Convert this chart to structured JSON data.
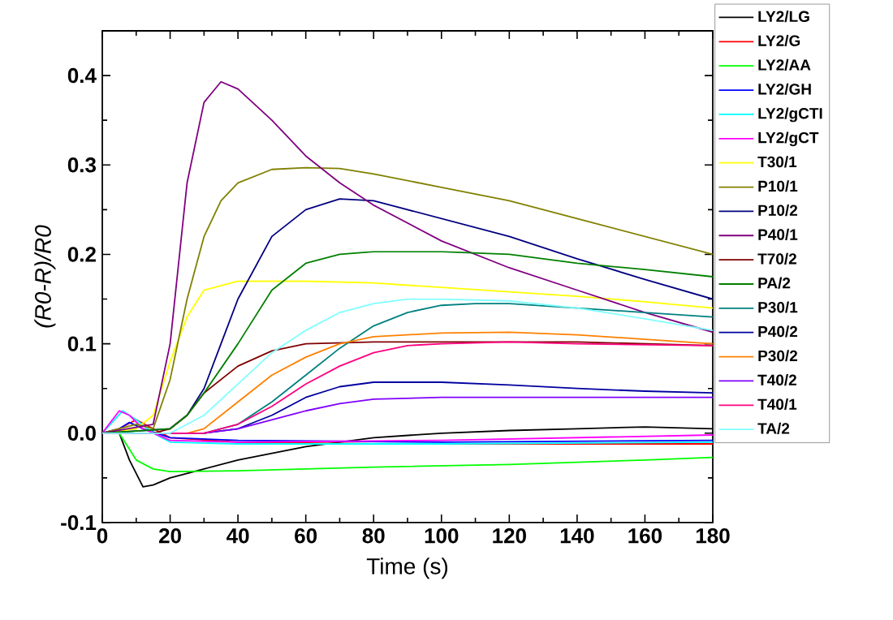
{
  "chart_data": {
    "type": "line",
    "xlabel": "Time (s)",
    "ylabel": "*(R0-R)/R0*",
    "xlim": [
      0,
      180
    ],
    "ylim": [
      -0.1,
      0.45
    ],
    "xticks": [
      0,
      20,
      40,
      60,
      80,
      100,
      120,
      140,
      160,
      180
    ],
    "yticks": [
      {
        "value": -0.1,
        "label": "-0.1"
      },
      {
        "value": 0,
        "label": "0.0"
      },
      {
        "value": 0.1,
        "label": "0.1"
      },
      {
        "value": 0.2,
        "label": "0.2"
      },
      {
        "value": 0.3,
        "label": "0.3"
      },
      {
        "value": 0.4,
        "label": "0.4"
      }
    ],
    "grid": false,
    "legend": "right",
    "marker": "none",
    "line_style": "solid",
    "series": [
      {
        "name": "LY2/LG",
        "color": "#000000",
        "x": [
          0,
          5,
          8,
          12,
          15,
          20,
          30,
          40,
          60,
          80,
          100,
          120,
          140,
          160,
          180
        ],
        "values": [
          0,
          0,
          -0.03,
          -0.06,
          -0.058,
          -0.05,
          -0.04,
          -0.03,
          -0.015,
          -0.005,
          0,
          0.003,
          0.005,
          0.007,
          0.005
        ]
      },
      {
        "name": "LY2/G",
        "color": "#ff0000",
        "x": [
          0,
          5,
          10,
          15,
          20,
          40,
          80,
          120,
          180
        ],
        "values": [
          0,
          0.005,
          0.015,
          0.005,
          -0.005,
          -0.01,
          -0.012,
          -0.012,
          -0.012
        ]
      },
      {
        "name": "LY2/AA",
        "color": "#00ff00",
        "x": [
          0,
          5,
          10,
          15,
          20,
          40,
          80,
          120,
          160,
          180
        ],
        "values": [
          0,
          0,
          -0.03,
          -0.04,
          -0.043,
          -0.042,
          -0.038,
          -0.035,
          -0.03,
          -0.027
        ]
      },
      {
        "name": "LY2/GH",
        "color": "#0000ff",
        "x": [
          0,
          5,
          8,
          12,
          20,
          40,
          100,
          180
        ],
        "values": [
          0,
          0.005,
          0.012,
          0.005,
          -0.005,
          -0.008,
          -0.01,
          -0.008
        ]
      },
      {
        "name": "LY2/gCTI",
        "color": "#00ffff",
        "x": [
          0,
          6,
          10,
          15,
          20,
          40,
          100,
          180
        ],
        "values": [
          0,
          0.025,
          0.015,
          0,
          -0.01,
          -0.012,
          -0.012,
          -0.01
        ]
      },
      {
        "name": "LY2/gCT",
        "color": "#ff00ff",
        "x": [
          0,
          5,
          8,
          12,
          20,
          40,
          100,
          180
        ],
        "values": [
          0,
          0.025,
          0.02,
          0.005,
          -0.008,
          -0.01,
          -0.008,
          -0.002
        ]
      },
      {
        "name": "T30/1",
        "color": "#ffff00",
        "x": [
          0,
          10,
          15,
          20,
          25,
          30,
          40,
          60,
          80,
          100,
          120,
          140,
          160,
          180
        ],
        "values": [
          0,
          0.005,
          0.02,
          0.08,
          0.13,
          0.16,
          0.17,
          0.17,
          0.168,
          0.163,
          0.158,
          0.153,
          0.147,
          0.14
        ]
      },
      {
        "name": "P10/1",
        "color": "#808000",
        "x": [
          0,
          10,
          15,
          20,
          25,
          30,
          35,
          40,
          50,
          60,
          70,
          80,
          100,
          120,
          140,
          160,
          180
        ],
        "values": [
          0,
          0.01,
          0.005,
          0.06,
          0.15,
          0.22,
          0.26,
          0.28,
          0.295,
          0.297,
          0.296,
          0.29,
          0.275,
          0.26,
          0.24,
          0.22,
          0.2
        ]
      },
      {
        "name": "P10/2",
        "color": "#000080",
        "x": [
          0,
          20,
          25,
          30,
          35,
          40,
          50,
          60,
          70,
          80,
          100,
          120,
          140,
          160,
          180
        ],
        "values": [
          0,
          0.005,
          0.02,
          0.05,
          0.1,
          0.15,
          0.22,
          0.25,
          0.262,
          0.26,
          0.24,
          0.22,
          0.195,
          0.172,
          0.15
        ]
      },
      {
        "name": "P40/1",
        "color": "#800080",
        "x": [
          0,
          15,
          20,
          25,
          30,
          35,
          40,
          50,
          60,
          70,
          80,
          100,
          120,
          140,
          160,
          180
        ],
        "values": [
          0,
          0.01,
          0.1,
          0.28,
          0.37,
          0.393,
          0.385,
          0.35,
          0.31,
          0.28,
          0.255,
          0.215,
          0.185,
          0.16,
          0.135,
          0.113
        ]
      },
      {
        "name": "T70/2",
        "color": "#800000",
        "x": [
          0,
          15,
          20,
          25,
          30,
          40,
          50,
          60,
          80,
          100,
          140,
          180
        ],
        "values": [
          0,
          0,
          0.005,
          0.02,
          0.045,
          0.075,
          0.092,
          0.1,
          0.102,
          0.102,
          0.102,
          0.098
        ]
      },
      {
        "name": "PA/2",
        "color": "#008000",
        "x": [
          0,
          20,
          25,
          30,
          40,
          50,
          60,
          70,
          80,
          100,
          120,
          140,
          160,
          180
        ],
        "values": [
          0,
          0.005,
          0.02,
          0.045,
          0.1,
          0.16,
          0.19,
          0.2,
          0.203,
          0.203,
          0.2,
          0.19,
          0.183,
          0.175
        ]
      },
      {
        "name": "P30/1",
        "color": "#008080",
        "x": [
          0,
          30,
          40,
          50,
          60,
          70,
          80,
          90,
          100,
          110,
          120,
          140,
          160,
          180
        ],
        "values": [
          0,
          0,
          0.01,
          0.035,
          0.065,
          0.095,
          0.12,
          0.135,
          0.143,
          0.145,
          0.145,
          0.14,
          0.135,
          0.13
        ]
      },
      {
        "name": "P40/2",
        "color": "#0000a0",
        "x": [
          0,
          30,
          40,
          50,
          60,
          70,
          80,
          100,
          120,
          140,
          160,
          180
        ],
        "values": [
          0,
          0,
          0.005,
          0.02,
          0.04,
          0.052,
          0.057,
          0.057,
          0.054,
          0.05,
          0.047,
          0.045
        ]
      },
      {
        "name": "P30/2",
        "color": "#ff8000",
        "x": [
          0,
          25,
          30,
          40,
          50,
          60,
          70,
          80,
          100,
          120,
          140,
          160,
          180
        ],
        "values": [
          0,
          0,
          0.005,
          0.035,
          0.065,
          0.085,
          0.1,
          0.108,
          0.112,
          0.113,
          0.11,
          0.105,
          0.1
        ]
      },
      {
        "name": "T40/2",
        "color": "#8000ff",
        "x": [
          0,
          30,
          40,
          50,
          60,
          70,
          80,
          100,
          140,
          180
        ],
        "values": [
          0,
          0,
          0.005,
          0.015,
          0.025,
          0.033,
          0.038,
          0.04,
          0.04,
          0.04
        ]
      },
      {
        "name": "T40/1",
        "color": "#ff0080",
        "x": [
          0,
          30,
          40,
          50,
          60,
          70,
          80,
          90,
          100,
          120,
          140,
          180
        ],
        "values": [
          0,
          0,
          0.01,
          0.03,
          0.055,
          0.075,
          0.09,
          0.098,
          0.1,
          0.102,
          0.1,
          0.098
        ]
      },
      {
        "name": "TA/2",
        "color": "#80ffff",
        "x": [
          0,
          20,
          30,
          40,
          50,
          60,
          70,
          80,
          90,
          100,
          120,
          140,
          160,
          180
        ],
        "values": [
          0,
          0,
          0.02,
          0.055,
          0.09,
          0.115,
          0.135,
          0.145,
          0.15,
          0.15,
          0.148,
          0.14,
          0.128,
          0.115
        ]
      }
    ]
  }
}
